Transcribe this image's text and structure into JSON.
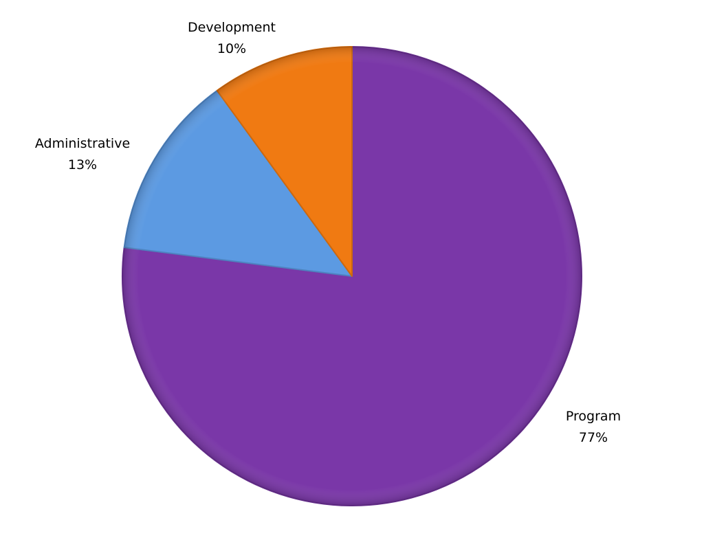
{
  "chart_data": {
    "type": "pie",
    "title": "",
    "start_angle_deg": 0,
    "direction": "clockwise",
    "slices": [
      {
        "name": "Program",
        "value": 77,
        "percent_label": "77%",
        "color": "#7A37A8"
      },
      {
        "name": "Administrative",
        "value": 13,
        "percent_label": "13%",
        "color": "#5C9AE2"
      },
      {
        "name": "Development",
        "value": 10,
        "percent_label": "10%",
        "color": "#F07A12"
      }
    ],
    "legend": "none",
    "data_labels": "outside"
  }
}
